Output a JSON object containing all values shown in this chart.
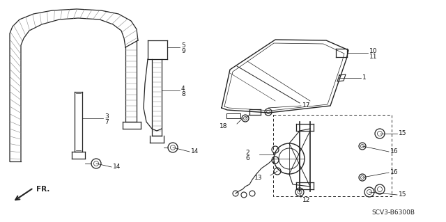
{
  "diagram_code": "SCV3-B6300B",
  "background_color": "#ffffff",
  "line_color": "#222222",
  "figsize": [
    6.4,
    3.19
  ],
  "dpi": 100,
  "frame_hatch_color": "#555555",
  "label_color": "#111111"
}
